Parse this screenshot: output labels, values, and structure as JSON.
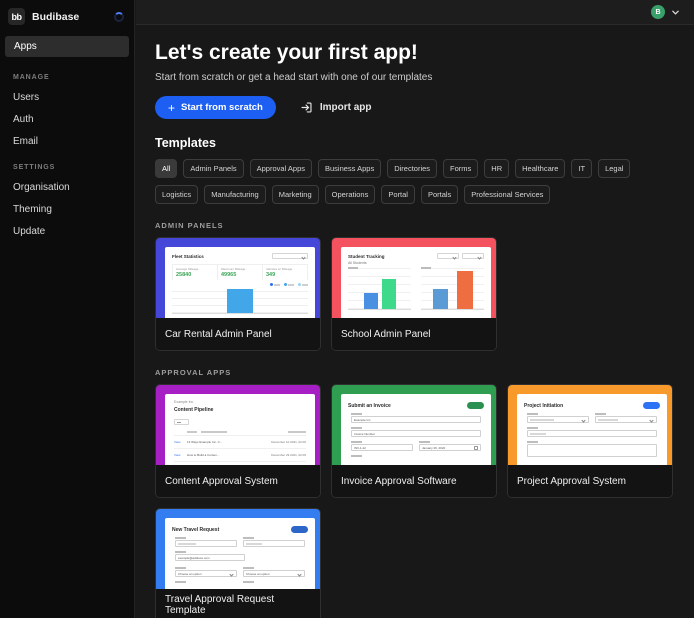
{
  "sidebar": {
    "logo_text": "bb",
    "brand": "Budibase",
    "active_item": "Apps",
    "sections": [
      {
        "label": "MANAGE",
        "items": [
          "Users",
          "Auth",
          "Email"
        ]
      },
      {
        "label": "SETTINGS",
        "items": [
          "Organisation",
          "Theming",
          "Update"
        ]
      }
    ]
  },
  "topbar": {
    "avatar_initial": "B"
  },
  "hero": {
    "title": "Let's create your first app!",
    "subtitle": "Start from scratch or get a head start with one of our templates",
    "start_button": "Start from scratch",
    "import_button": "Import app"
  },
  "templates": {
    "heading": "Templates",
    "selected_filter": "All",
    "filters": [
      "All",
      "Admin Panels",
      "Approval Apps",
      "Business Apps",
      "Directories",
      "Forms",
      "HR",
      "Healthcare",
      "IT",
      "Legal",
      "Logistics",
      "Manufacturing",
      "Marketing",
      "Operations",
      "Portal",
      "Portals",
      "Professional Services"
    ],
    "section_labels": {
      "admin_panels": "ADMIN PANELS",
      "approval_apps": "APPROVAL APPS"
    }
  },
  "cards": {
    "car_rental": {
      "name": "Car Rental Admin Panel",
      "thumb": {
        "title": "Fleet Statistics",
        "stats": [
          {
            "label": "Average Mileage",
            "value": "25840"
          },
          {
            "label": "Maximum Mileage",
            "value": "49965"
          },
          {
            "label": "Vehicles w/ Mileage",
            "value": "349"
          }
        ]
      }
    },
    "school": {
      "name": "School Admin Panel",
      "thumb": {
        "title": "Student Tracking",
        "subtitle": "All Students"
      }
    },
    "content": {
      "name": "Content Approval System",
      "thumb": {
        "company": "Example Inc",
        "title": "Content Pipeline",
        "rows": [
          {
            "link": "View",
            "title": "13 Ways Example Inc. C...",
            "date": "December 10 2021, 02:00"
          },
          {
            "link": "View",
            "title": "How to Build a Conten...",
            "date": "December 29 2021, 02:00"
          }
        ]
      }
    },
    "invoice": {
      "name": "Invoice Approval Software",
      "thumb": {
        "title": "Submit an Invoice",
        "vendor_value": "Example Inc",
        "invoice_number_value": "Invoice Number",
        "id_value": "INV-1-12",
        "date_value": "January 26, 2022"
      }
    },
    "project": {
      "name": "Project Approval System",
      "thumb": {
        "title": "Project Initiation"
      }
    },
    "travel": {
      "name": "Travel Approval Request Template",
      "thumb": {
        "title": "New Travel Request",
        "email_value": "example@address.com",
        "select_placeholder": "Choose an option"
      }
    }
  },
  "colors": {
    "accent_blue": "#1d5ff2",
    "avatar_green": "#3aa06b",
    "card_car_rental": "#4447d8",
    "card_school": "#f4525e",
    "card_content": "#a51fc4",
    "card_invoice": "#2f9e50",
    "card_project": "#f8992b",
    "card_travel": "#337df0"
  }
}
